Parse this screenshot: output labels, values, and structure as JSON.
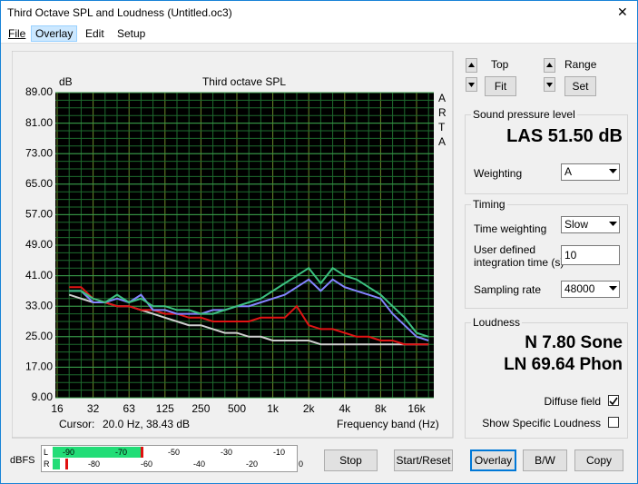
{
  "window": {
    "title": "Third Octave SPL and Loudness (Untitled.oc3)",
    "close": "✕"
  },
  "menu": [
    "File",
    "Overlay",
    "Edit",
    "Setup"
  ],
  "chart_data": {
    "type": "line",
    "title": "Third octave SPL",
    "y_label": "dB",
    "side_label": "ARTA",
    "x_label": "Frequency band (Hz)",
    "cursor_label": "Cursor:",
    "cursor_value": "20.0 Hz, 38.43 dB",
    "categories": [
      "16",
      null,
      null,
      "32",
      null,
      null,
      "63",
      null,
      null,
      "125",
      null,
      null,
      "250",
      null,
      null,
      "500",
      null,
      null,
      "1k",
      null,
      null,
      "2k",
      null,
      null,
      "4k",
      null,
      null,
      "8k",
      null,
      null,
      "16k",
      null
    ],
    "series": [
      {
        "name": "Gray",
        "color": "#cfcfcf",
        "values": [
          null,
          36,
          35,
          34,
          34,
          33,
          33,
          32,
          31,
          30,
          29,
          28,
          28,
          27,
          26,
          26,
          25,
          25,
          24,
          24,
          24,
          24,
          23,
          23,
          23,
          23,
          23,
          23,
          23,
          23,
          23,
          23
        ]
      },
      {
        "name": "Red",
        "color": "#e01414",
        "values": [
          null,
          38,
          38,
          35,
          34,
          33,
          33,
          32,
          32,
          31,
          31,
          30,
          30,
          29,
          29,
          29,
          29,
          30,
          30,
          30,
          33,
          28,
          27,
          27,
          26,
          25,
          25,
          24,
          24,
          23,
          23,
          23
        ]
      },
      {
        "name": "Blue",
        "color": "#8484ff",
        "values": [
          null,
          37,
          37,
          34,
          34,
          35,
          34,
          36,
          32,
          32,
          31,
          31,
          31,
          32,
          32,
          33,
          33,
          34,
          35,
          36,
          38,
          40,
          37,
          40,
          38,
          37,
          36,
          35,
          31,
          28,
          25,
          24
        ]
      },
      {
        "name": "Green",
        "color": "#3cc080",
        "values": [
          null,
          37,
          37,
          35,
          34,
          36,
          34,
          35,
          33,
          33,
          32,
          32,
          31,
          31,
          32,
          33,
          34,
          35,
          37,
          39,
          41,
          43,
          39,
          43,
          41,
          40,
          38,
          36,
          33,
          30,
          26,
          25
        ]
      }
    ],
    "ylim": [
      9,
      89
    ],
    "yticks": [
      {
        "value": 89,
        "label": "89.00"
      },
      {
        "value": 81,
        "label": "81.00"
      },
      {
        "value": 73,
        "label": "73.00"
      },
      {
        "value": 65,
        "label": "65.00"
      },
      {
        "value": 57,
        "label": "57.00"
      },
      {
        "value": 49,
        "label": "49.00"
      },
      {
        "value": 41,
        "label": "41.00"
      },
      {
        "value": 33,
        "label": "33.00"
      },
      {
        "value": 25,
        "label": "25.00"
      },
      {
        "value": 17,
        "label": "17.00"
      },
      {
        "value": 9,
        "label": "9.00"
      }
    ],
    "grid": true
  },
  "controls": {
    "top_label": "Top",
    "fit": "Fit",
    "range_label": "Range",
    "set": "Set"
  },
  "spl": {
    "title": "Sound pressure level",
    "reading": "LAS 51.50 dB",
    "weighting_label": "Weighting",
    "weighting": "A"
  },
  "timing": {
    "title": "Timing",
    "time_weighting_label": "Time weighting",
    "time_weighting": "Slow",
    "integration_label": [
      "User defined",
      "integration time (s)"
    ],
    "integration": "10",
    "sampling_label": "Sampling rate",
    "sampling": "48000"
  },
  "loudness": {
    "title": "Loudness",
    "n": "N 7.80 Sone",
    "ln": "LN 69.64 Phon",
    "diffuse": "Diffuse field",
    "specific": "Show Specific Loudness"
  },
  "meter": {
    "label": "dBFS",
    "left": "L",
    "right": "R",
    "top_scale": [
      "-90",
      "-70",
      "-50",
      "-30",
      "-10"
    ],
    "bottom_scale": [
      "-80",
      "-60",
      "-40",
      "-20",
      "0"
    ]
  },
  "buttons": [
    "Stop",
    "Start/Reset",
    "Overlay",
    "B/W",
    "Copy"
  ]
}
